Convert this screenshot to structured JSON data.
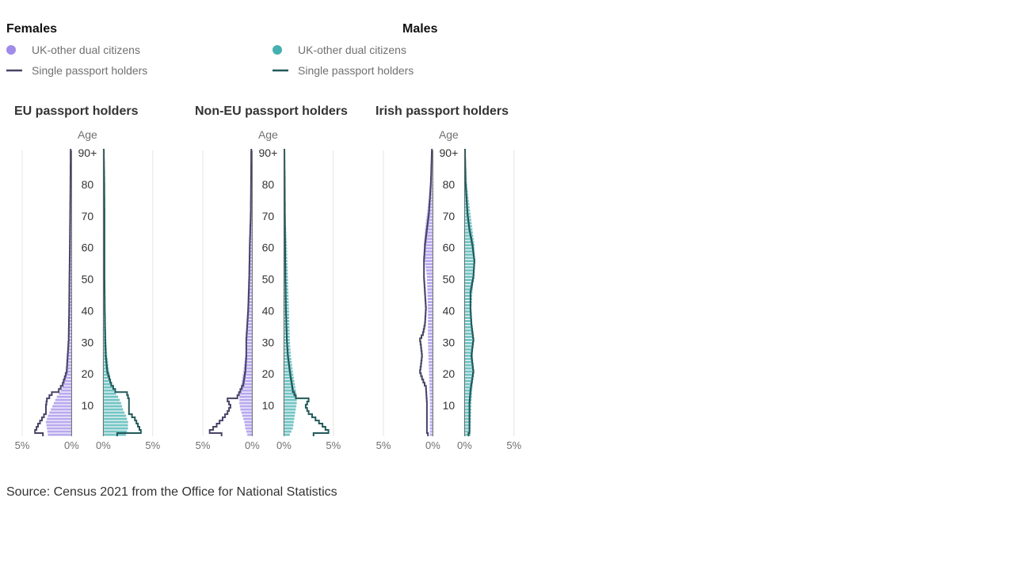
{
  "legend": {
    "females": {
      "title": "Females",
      "dual_label": "UK-other dual citizens",
      "single_label": "Single passport holders",
      "dual_color": "#a08ce8",
      "single_color": "#474466"
    },
    "males": {
      "title": "Males",
      "dual_label": "UK-other dual citizens",
      "single_label": "Single passport holders",
      "dual_color": "#46b0b0",
      "single_color": "#22595a"
    }
  },
  "source": "Source: Census 2021 from the Office for National Statistics",
  "chart_data": {
    "type": "bar",
    "subtype": "population-pyramid",
    "age_axis_label": "Age",
    "age_ticks": [
      "10",
      "20",
      "30",
      "40",
      "50",
      "60",
      "70",
      "80",
      "90+"
    ],
    "x_ticks": [
      "5%",
      "0%",
      "0%",
      "5%"
    ],
    "x_range_percent": [
      0,
      5
    ],
    "age_range": [
      0,
      90
    ],
    "panels": [
      {
        "title": "EU passport holders",
        "female_dual_knots": [
          [
            0,
            2.4
          ],
          [
            2,
            2.5
          ],
          [
            4,
            2.6
          ],
          [
            6,
            2.4
          ],
          [
            8,
            2.1
          ],
          [
            10,
            1.8
          ],
          [
            12,
            1.5
          ],
          [
            14,
            1.1
          ],
          [
            16,
            0.8
          ],
          [
            20,
            0.6
          ],
          [
            25,
            0.4
          ],
          [
            30,
            0.35
          ],
          [
            40,
            0.25
          ],
          [
            50,
            0.2
          ],
          [
            60,
            0.15
          ],
          [
            70,
            0.1
          ],
          [
            80,
            0.05
          ],
          [
            90,
            0.02
          ]
        ],
        "male_dual_knots": [
          [
            0,
            2.3
          ],
          [
            2,
            2.5
          ],
          [
            4,
            2.5
          ],
          [
            6,
            2.3
          ],
          [
            8,
            2.0
          ],
          [
            10,
            1.8
          ],
          [
            12,
            1.5
          ],
          [
            14,
            1.1
          ],
          [
            16,
            0.8
          ],
          [
            20,
            0.6
          ],
          [
            25,
            0.4
          ],
          [
            30,
            0.3
          ],
          [
            40,
            0.2
          ],
          [
            50,
            0.15
          ],
          [
            60,
            0.1
          ],
          [
            70,
            0.08
          ],
          [
            80,
            0.05
          ],
          [
            90,
            0.02
          ]
        ],
        "female_single_knots": [
          [
            0,
            2.9
          ],
          [
            1,
            3.7
          ],
          [
            3,
            3.4
          ],
          [
            5,
            3.0
          ],
          [
            7,
            2.6
          ],
          [
            9,
            2.6
          ],
          [
            11,
            2.5
          ],
          [
            13,
            2.0
          ],
          [
            14,
            1.3
          ],
          [
            16,
            0.9
          ],
          [
            20,
            0.5
          ],
          [
            25,
            0.4
          ],
          [
            30,
            0.3
          ],
          [
            40,
            0.25
          ],
          [
            50,
            0.22
          ],
          [
            60,
            0.18
          ],
          [
            70,
            0.15
          ],
          [
            80,
            0.12
          ],
          [
            90,
            0.1
          ]
        ],
        "male_single_knots": [
          [
            0,
            1.4
          ],
          [
            1,
            3.8
          ],
          [
            3,
            3.5
          ],
          [
            5,
            3.2
          ],
          [
            7,
            2.6
          ],
          [
            9,
            2.6
          ],
          [
            11,
            2.6
          ],
          [
            13,
            2.4
          ],
          [
            14,
            1.2
          ],
          [
            16,
            0.8
          ],
          [
            20,
            0.4
          ],
          [
            25,
            0.25
          ],
          [
            30,
            0.2
          ],
          [
            40,
            0.15
          ],
          [
            50,
            0.12
          ],
          [
            60,
            0.12
          ],
          [
            70,
            0.12
          ],
          [
            80,
            0.1
          ],
          [
            90,
            0.05
          ]
        ]
      },
      {
        "title": "Non-EU passport holders",
        "female_dual_knots": [
          [
            0,
            0.5
          ],
          [
            2,
            0.7
          ],
          [
            4,
            0.8
          ],
          [
            6,
            1.0
          ],
          [
            8,
            1.2
          ],
          [
            10,
            1.3
          ],
          [
            12,
            1.3
          ],
          [
            14,
            1.2
          ],
          [
            16,
            1.1
          ],
          [
            20,
            0.9
          ],
          [
            25,
            0.7
          ],
          [
            30,
            0.6
          ],
          [
            40,
            0.5
          ],
          [
            50,
            0.4
          ],
          [
            60,
            0.3
          ],
          [
            70,
            0.15
          ],
          [
            80,
            0.08
          ],
          [
            90,
            0.03
          ]
        ],
        "male_dual_knots": [
          [
            0,
            0.6
          ],
          [
            2,
            0.9
          ],
          [
            4,
            1.0
          ],
          [
            6,
            1.1
          ],
          [
            8,
            1.2
          ],
          [
            10,
            1.3
          ],
          [
            12,
            1.3
          ],
          [
            14,
            1.2
          ],
          [
            16,
            1.1
          ],
          [
            20,
            0.9
          ],
          [
            25,
            0.7
          ],
          [
            30,
            0.6
          ],
          [
            40,
            0.5
          ],
          [
            50,
            0.4
          ],
          [
            60,
            0.3
          ],
          [
            70,
            0.15
          ],
          [
            80,
            0.08
          ],
          [
            90,
            0.03
          ]
        ],
        "female_single_knots": [
          [
            0,
            3.1
          ],
          [
            1,
            4.3
          ],
          [
            3,
            3.6
          ],
          [
            5,
            3.0
          ],
          [
            7,
            2.5
          ],
          [
            9,
            2.2
          ],
          [
            11,
            2.5
          ],
          [
            12,
            1.5
          ],
          [
            14,
            1.2
          ],
          [
            16,
            0.9
          ],
          [
            20,
            0.7
          ],
          [
            25,
            0.6
          ],
          [
            30,
            0.6
          ],
          [
            35,
            0.5
          ],
          [
            40,
            0.4
          ],
          [
            50,
            0.3
          ],
          [
            60,
            0.25
          ],
          [
            70,
            0.15
          ],
          [
            80,
            0.12
          ],
          [
            90,
            0.1
          ]
        ],
        "male_single_knots": [
          [
            0,
            3.0
          ],
          [
            1,
            4.5
          ],
          [
            3,
            3.9
          ],
          [
            5,
            3.2
          ],
          [
            7,
            2.5
          ],
          [
            9,
            2.2
          ],
          [
            11,
            2.5
          ],
          [
            12,
            1.2
          ],
          [
            14,
            0.9
          ],
          [
            16,
            0.8
          ],
          [
            20,
            0.6
          ],
          [
            25,
            0.4
          ],
          [
            30,
            0.3
          ],
          [
            40,
            0.2
          ],
          [
            50,
            0.15
          ],
          [
            60,
            0.12
          ],
          [
            70,
            0.1
          ],
          [
            80,
            0.08
          ],
          [
            90,
            0.05
          ]
        ]
      },
      {
        "title": "Irish passport holders",
        "female_dual_knots": [
          [
            0,
            0.3
          ],
          [
            10,
            0.3
          ],
          [
            20,
            0.4
          ],
          [
            30,
            0.5
          ],
          [
            40,
            0.5
          ],
          [
            50,
            0.6
          ],
          [
            55,
            0.8
          ],
          [
            60,
            0.9
          ],
          [
            65,
            0.8
          ],
          [
            70,
            0.6
          ],
          [
            75,
            0.4
          ],
          [
            80,
            0.25
          ],
          [
            90,
            0.1
          ]
        ],
        "male_dual_knots": [
          [
            0,
            0.6
          ],
          [
            10,
            0.7
          ],
          [
            20,
            0.9
          ],
          [
            30,
            0.8
          ],
          [
            40,
            0.7
          ],
          [
            50,
            0.9
          ],
          [
            55,
            1.0
          ],
          [
            60,
            1.0
          ],
          [
            65,
            0.8
          ],
          [
            70,
            0.6
          ],
          [
            75,
            0.4
          ],
          [
            80,
            0.25
          ],
          [
            90,
            0.1
          ]
        ],
        "female_single_knots": [
          [
            0,
            0.5
          ],
          [
            1,
            0.6
          ],
          [
            5,
            0.6
          ],
          [
            10,
            0.6
          ],
          [
            15,
            0.7
          ],
          [
            18,
            1.1
          ],
          [
            20,
            1.3
          ],
          [
            22,
            1.2
          ],
          [
            25,
            1.1
          ],
          [
            28,
            1.2
          ],
          [
            30,
            1.3
          ],
          [
            32,
            1.0
          ],
          [
            35,
            0.8
          ],
          [
            40,
            0.7
          ],
          [
            45,
            0.8
          ],
          [
            50,
            0.9
          ],
          [
            55,
            0.9
          ],
          [
            60,
            0.8
          ],
          [
            65,
            0.6
          ],
          [
            70,
            0.4
          ],
          [
            80,
            0.2
          ],
          [
            90,
            0.1
          ]
        ],
        "male_single_knots": [
          [
            0,
            0.4
          ],
          [
            1,
            0.5
          ],
          [
            5,
            0.5
          ],
          [
            10,
            0.5
          ],
          [
            14,
            0.6
          ],
          [
            16,
            0.7
          ],
          [
            20,
            0.9
          ],
          [
            25,
            0.7
          ],
          [
            30,
            0.9
          ],
          [
            35,
            0.7
          ],
          [
            40,
            0.6
          ],
          [
            45,
            0.6
          ],
          [
            50,
            0.9
          ],
          [
            55,
            1.0
          ],
          [
            60,
            0.8
          ],
          [
            65,
            0.5
          ],
          [
            70,
            0.3
          ],
          [
            80,
            0.1
          ],
          [
            90,
            0.05
          ]
        ]
      }
    ]
  }
}
